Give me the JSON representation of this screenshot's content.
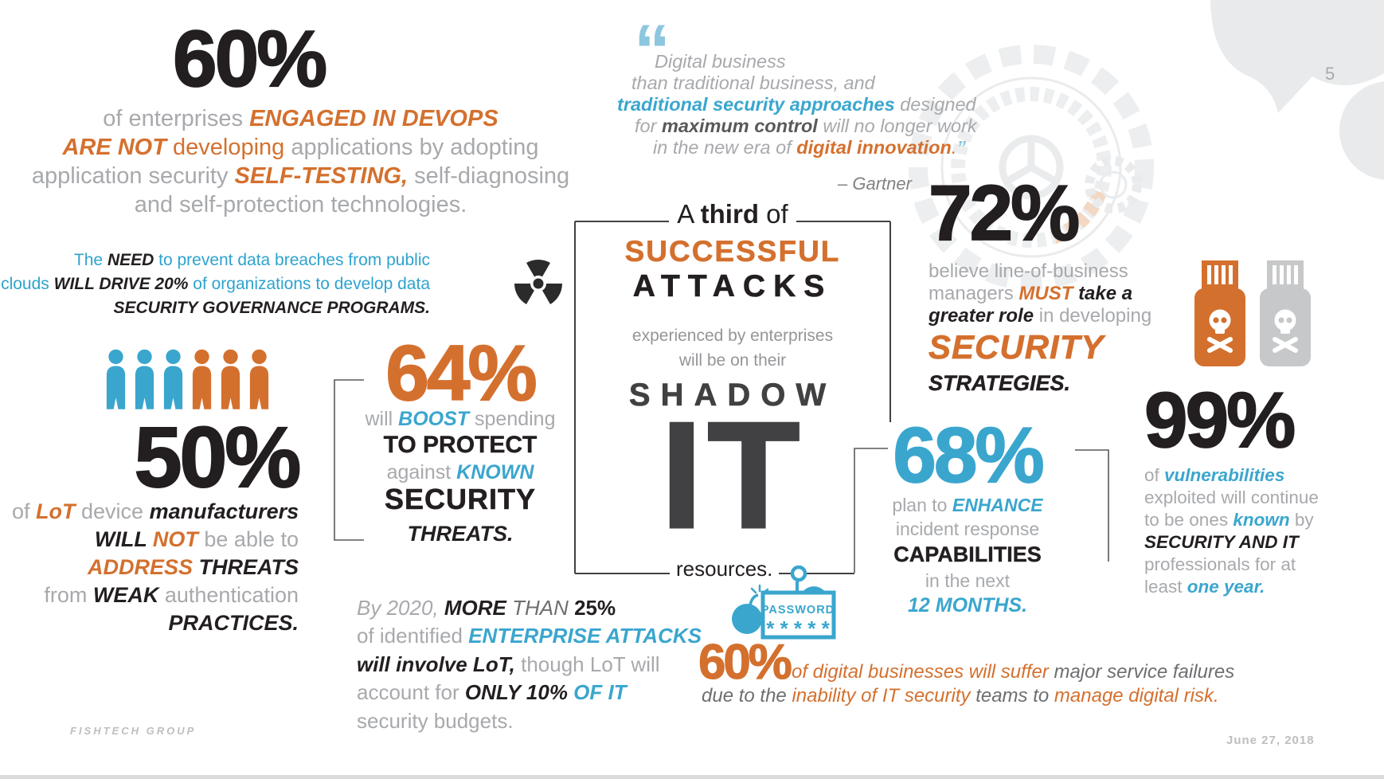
{
  "slide": {
    "page_number": "5",
    "footer_left": "FISHTECH GROUP",
    "footer_right": "June 27, 2018"
  },
  "colors": {
    "orange": "#D4702E",
    "blue": "#3AA6CE",
    "light_blue": "#8CC7DF",
    "link_blue": "#2EA3CE",
    "black": "#231F20",
    "charcoal": "#414042",
    "gray": "#A7A9AC",
    "dark_gray": "#58595B",
    "silver": "#C7C8CA",
    "watermark_gray": "#E8EAEC"
  },
  "devops": {
    "stat": "60%",
    "lines": [
      [
        {
          "t": "of enterprises ",
          "s": "g"
        },
        {
          "t": "ENGAGED IN DEVOPS",
          "s": "o"
        }
      ],
      [
        {
          "t": "ARE NOT ",
          "s": "o"
        },
        {
          "t": "developing ",
          "s": "or"
        },
        {
          "t": "applications by adopting",
          "s": "g"
        }
      ],
      [
        {
          "t": "application security ",
          "s": "g"
        },
        {
          "t": "SELF-TESTING, ",
          "s": "o"
        },
        {
          "t": "self-diagnosing",
          "s": "g"
        }
      ],
      [
        {
          "t": "and self-protection technologies.",
          "s": "g"
        }
      ]
    ]
  },
  "quote": {
    "open_mark": "“",
    "lines": [
      [
        {
          "t": "Digital business",
          "s": "gi"
        }
      ],
      [
        {
          "t": "than traditional business, and",
          "s": "gi"
        }
      ],
      [
        {
          "t": "traditional security approaches ",
          "s": "bl"
        },
        {
          "t": "designed",
          "s": "gi"
        }
      ],
      [
        {
          "t": "for ",
          "s": "gi"
        },
        {
          "t": "maximum control ",
          "s": "dk"
        },
        {
          "t": "will no longer work",
          "s": "gi"
        }
      ],
      [
        {
          "t": "in the new era of ",
          "s": "gi"
        },
        {
          "t": "digital innovation",
          "s": "o"
        },
        {
          "t": ".",
          "s": "oi"
        },
        {
          "t": "”",
          "s": "lq"
        }
      ]
    ],
    "attribution": "– Gartner"
  },
  "governance": {
    "lines": [
      [
        {
          "t": "The ",
          "s": "blu"
        },
        {
          "t": "NEED ",
          "s": "b"
        },
        {
          "t": "to prevent data breaches from public",
          "s": "blu"
        }
      ],
      [
        {
          "t": "clouds ",
          "s": "blu"
        },
        {
          "t": "WILL DRIVE 20% ",
          "s": "b"
        },
        {
          "t": "of organizations to develop data",
          "s": "blu"
        }
      ],
      [
        {
          "t": "SECURITY GOVERNANCE PROGRAMS.",
          "s": "b"
        }
      ]
    ]
  },
  "managers": {
    "stat": "72%",
    "lines": [
      [
        {
          "t": "believe line-of-business",
          "s": "g"
        }
      ],
      [
        {
          "t": "managers ",
          "s": "g"
        },
        {
          "t": "MUST ",
          "s": "o"
        },
        {
          "t": "take a",
          "s": "b"
        }
      ],
      [
        {
          "t": "greater role ",
          "s": "b"
        },
        {
          "t": "in developing",
          "s": "g"
        }
      ]
    ],
    "security": "SECURITY",
    "strategies": "STRATEGIES."
  },
  "iot": {
    "stat": "50%",
    "lines": [
      [
        {
          "t": "of ",
          "s": "g"
        },
        {
          "t": "LoT ",
          "s": "o"
        },
        {
          "t": "device ",
          "s": "g"
        },
        {
          "t": "manufacturers",
          "s": "b"
        }
      ],
      [
        {
          "t": "WILL ",
          "s": "b"
        },
        {
          "t": "NOT ",
          "s": "o"
        },
        {
          "t": "be able to",
          "s": "g"
        }
      ],
      [
        {
          "t": "ADDRESS ",
          "s": "o"
        },
        {
          "t": "THREATS",
          "s": "b"
        }
      ],
      [
        {
          "t": "from ",
          "s": "g"
        },
        {
          "t": "WEAK ",
          "s": "b"
        },
        {
          "t": "authentication",
          "s": "g"
        }
      ],
      [
        {
          "t": "PRACTICES.",
          "s": "b"
        }
      ]
    ]
  },
  "spending": {
    "stat": "64%",
    "line1": [
      {
        "t": "will ",
        "s": "g"
      },
      {
        "t": "BOOST ",
        "s": "bl"
      },
      {
        "t": "spending",
        "s": "g"
      }
    ],
    "line2": "TO PROTECT",
    "line3": [
      {
        "t": "against ",
        "s": "g"
      },
      {
        "t": "KNOWN",
        "s": "bl"
      }
    ],
    "line4": "SECURITY",
    "line5": "THREATS."
  },
  "shadow": {
    "heading": [
      {
        "t": "A ",
        "s": "k"
      },
      {
        "t": "third",
        "s": "kb"
      },
      {
        "t": " of",
        "s": "k"
      }
    ],
    "line1": "SUCCESSFUL",
    "line2": "ATTACKS",
    "line3": "experienced by enterprises",
    "line4": "will be on their",
    "line5": "SHADOW",
    "line6": "IT",
    "line7": "resources."
  },
  "incident": {
    "stat": "68%",
    "line1": [
      {
        "t": "plan to ",
        "s": "g"
      },
      {
        "t": "ENHANCE",
        "s": "bl"
      }
    ],
    "line2": "incident response",
    "line3": "CAPABILITIES",
    "line4": "in the next",
    "line5": "12 MONTHS."
  },
  "vulnerabilities": {
    "stat": "99%",
    "lines": [
      [
        {
          "t": "of ",
          "s": "g"
        },
        {
          "t": "vulnerabilities",
          "s": "bl"
        }
      ],
      [
        {
          "t": "exploited will continue",
          "s": "g"
        }
      ],
      [
        {
          "t": "to be ones ",
          "s": "g"
        },
        {
          "t": "known ",
          "s": "bl"
        },
        {
          "t": "by",
          "s": "g"
        }
      ],
      [
        {
          "t": "SECURITY AND IT",
          "s": "b"
        }
      ],
      [
        {
          "t": "professionals for at",
          "s": "g"
        }
      ],
      [
        {
          "t": "least ",
          "s": "g"
        },
        {
          "t": "one year.",
          "s": "bl"
        }
      ]
    ]
  },
  "by2020": {
    "lines": [
      [
        {
          "t": "By 2020, ",
          "s": "gi"
        },
        {
          "t": "MORE ",
          "s": "b"
        },
        {
          "t": "THAN ",
          "s": "di"
        },
        {
          "t": "25%",
          "s": "kb"
        }
      ],
      [
        {
          "t": "of identified ",
          "s": "g"
        },
        {
          "t": "ENTERPRISE ATTACKS",
          "s": "bl"
        }
      ],
      [
        {
          "t": "will involve LoT, ",
          "s": "b"
        },
        {
          "t": "though LoT will",
          "s": "g"
        }
      ],
      [
        {
          "t": "account for ",
          "s": "g"
        },
        {
          "t": "ONLY 10% ",
          "s": "b"
        },
        {
          "t": "OF IT",
          "s": "bl"
        }
      ],
      [
        {
          "t": "security budgets.",
          "s": "g"
        }
      ]
    ]
  },
  "digital": {
    "stat": "60%",
    "line1": [
      {
        "t": "of digital businesses will suffer ",
        "s": "oi"
      },
      {
        "t": "major service failures",
        "s": "di"
      }
    ],
    "line2": [
      {
        "t": "due to the ",
        "s": "di"
      },
      {
        "t": "inability of IT security ",
        "s": "oi"
      },
      {
        "t": "teams to ",
        "s": "di"
      },
      {
        "t": "manage digital risk.",
        "s": "oi"
      }
    ]
  },
  "icons": {
    "people": [
      "blue",
      "blue",
      "blue",
      "orange",
      "orange",
      "orange"
    ],
    "usb_drives": [
      "orange",
      "gray"
    ],
    "password_label": "PASSWORD",
    "password_mask": "* * * * *"
  }
}
